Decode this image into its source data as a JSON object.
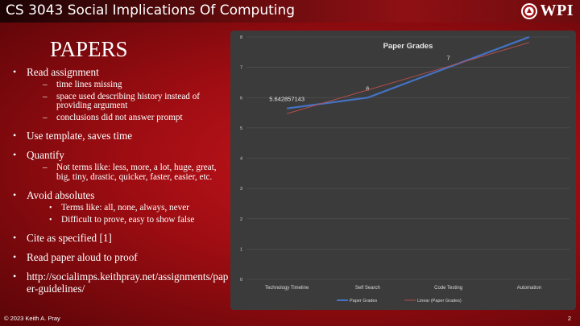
{
  "header": {
    "course_title": "CS 3043 Social Implications Of Computing",
    "logo_text": "WPI"
  },
  "slide": {
    "title": "PAPERS",
    "bullets": [
      {
        "text": "Read assignment",
        "style": "dash",
        "sub": [
          "time lines missing",
          "space used describing history instead of providing argument",
          "conclusions did not answer prompt"
        ]
      },
      {
        "text": "Use template, saves time",
        "sub": []
      },
      {
        "text": "Quantify",
        "style": "dash",
        "sub": [
          "Not terms like: less, more, a lot, huge, great, big, tiny, drastic, quicker, faster, easier, etc."
        ]
      },
      {
        "text": "Avoid absolutes",
        "style": "dot",
        "sub": [
          "Terms like: all, none, always, never",
          "Difficult to prove, easy to show false"
        ]
      },
      {
        "text": "Cite as specified [1]",
        "sub": []
      },
      {
        "text": "Read paper aloud to proof",
        "sub": []
      },
      {
        "text": "http://socialimps.keithpray.net/assignments/paper-guidelines/",
        "sub": [],
        "url": true
      }
    ]
  },
  "chart_data": {
    "type": "line",
    "title": "Paper Grades",
    "categories": [
      "Technology Timeline",
      "Self Search",
      "Code Testing",
      "Automation"
    ],
    "series": [
      {
        "name": "Paper Grades",
        "values": [
          5.642857143,
          6,
          7,
          8
        ],
        "color": "#4472c4",
        "data_labels": [
          "5.642857143",
          "6",
          "7",
          "8"
        ]
      },
      {
        "name": "Linear (Paper Grades)",
        "values": [
          5.47,
          6.25,
          7.03,
          7.82
        ],
        "color": "#c0504d",
        "trendline": true
      }
    ],
    "ylim": [
      0,
      8
    ],
    "yticks": [
      "0",
      "1",
      "2",
      "3",
      "4",
      "5",
      "6",
      "7",
      "8"
    ],
    "grid": true,
    "legend": "bottom",
    "background": "#3b3b3b"
  },
  "footer": {
    "copyright": "© 2023 Keith A. Pray",
    "page_number": "2"
  }
}
